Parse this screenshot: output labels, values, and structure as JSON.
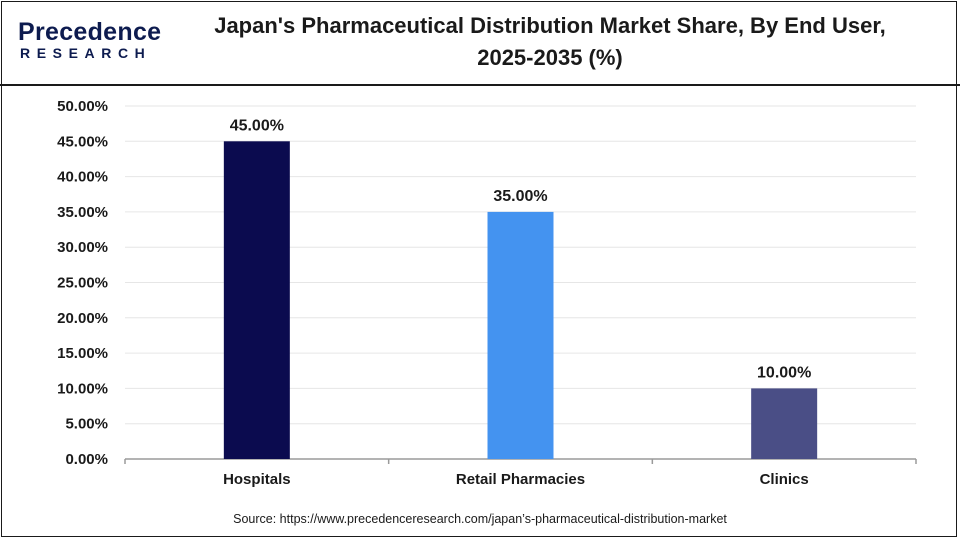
{
  "brand": {
    "name": "Precedence",
    "sub": "RESEARCH"
  },
  "colors": {
    "brand": "#0d1b4f",
    "grid": "#e6e6e6",
    "axis": "#9a9a9a"
  },
  "chart_data": {
    "type": "bar",
    "title": "Japan's Pharmaceutical Distribution Market Share, By End User, 2025-2035 (%)",
    "categories": [
      "Hospitals",
      "Retail Pharmacies",
      "Clinics"
    ],
    "values": [
      45.0,
      35.0,
      10.0
    ],
    "value_labels": [
      "45.00%",
      "35.00%",
      "10.00%"
    ],
    "bar_colors": [
      "#0b0b4f",
      "#4493f0",
      "#4a4e86"
    ],
    "ylim": [
      0,
      50
    ],
    "yticks": [
      {
        "value": 0,
        "label": "0.00%"
      },
      {
        "value": 5,
        "label": "5.00%"
      },
      {
        "value": 10,
        "label": "10.00%"
      },
      {
        "value": 15,
        "label": "15.00%"
      },
      {
        "value": 20,
        "label": "20.00%"
      },
      {
        "value": 25,
        "label": "25.00%"
      },
      {
        "value": 30,
        "label": "30.00%"
      },
      {
        "value": 35,
        "label": "35.00%"
      },
      {
        "value": 40,
        "label": "40.00%"
      },
      {
        "value": 45,
        "label": "45.00%"
      },
      {
        "value": 50,
        "label": "50.00%"
      }
    ],
    "grid": true,
    "xlabel": "",
    "ylabel": ""
  },
  "source": "Source: https://www.precedenceresearch.com/japan’s-pharmaceutical-distribution-market"
}
